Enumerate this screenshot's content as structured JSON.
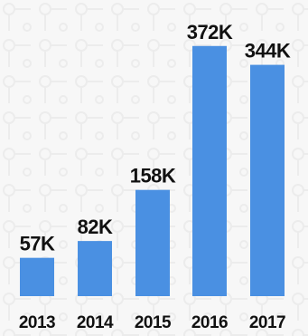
{
  "chart_data": {
    "type": "bar",
    "categories": [
      "2013",
      "2014",
      "2015",
      "2016",
      "2017"
    ],
    "values": [
      57,
      82,
      158,
      372,
      344
    ],
    "data_labels": [
      "57K",
      "82K",
      "158K",
      "372K",
      "344K"
    ],
    "title": "",
    "xlabel": "",
    "ylabel": "",
    "ylim": [
      0,
      400
    ],
    "grid": false,
    "legend": "none",
    "bar_color": "#4a90e2",
    "background_color": "#f7f7f7",
    "pattern_color": "#ececec"
  }
}
